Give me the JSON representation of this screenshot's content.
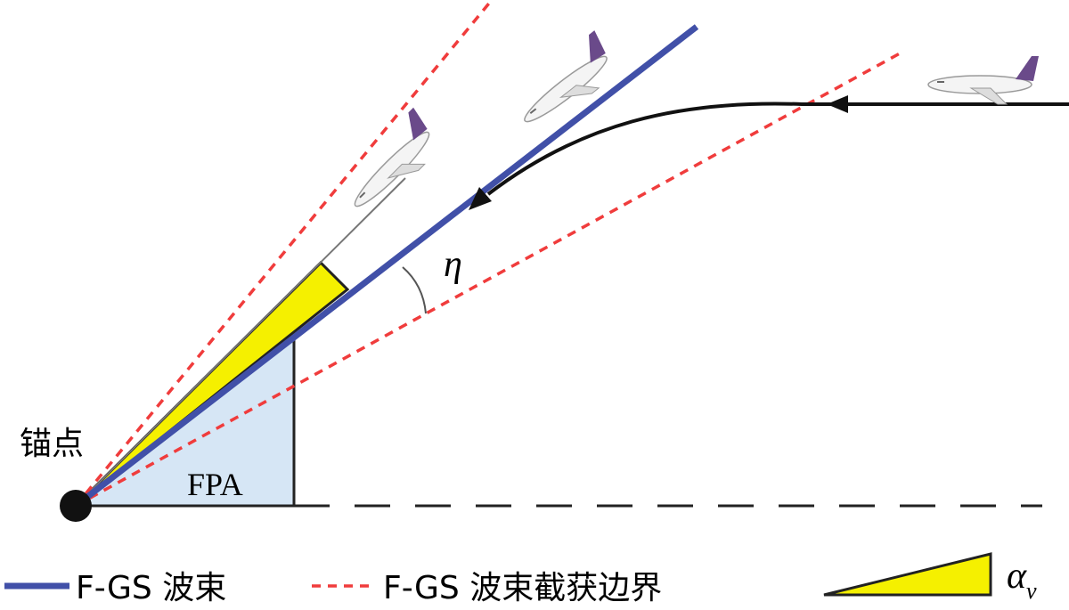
{
  "anchor_label": "锚点",
  "fpa_label": "FPA",
  "angle_label": "η",
  "legend": {
    "items": [
      {
        "label": "F-GS 波束"
      },
      {
        "label": "F-GS 波束截获边界"
      },
      {
        "label": "α",
        "subscript": "v"
      }
    ]
  }
}
